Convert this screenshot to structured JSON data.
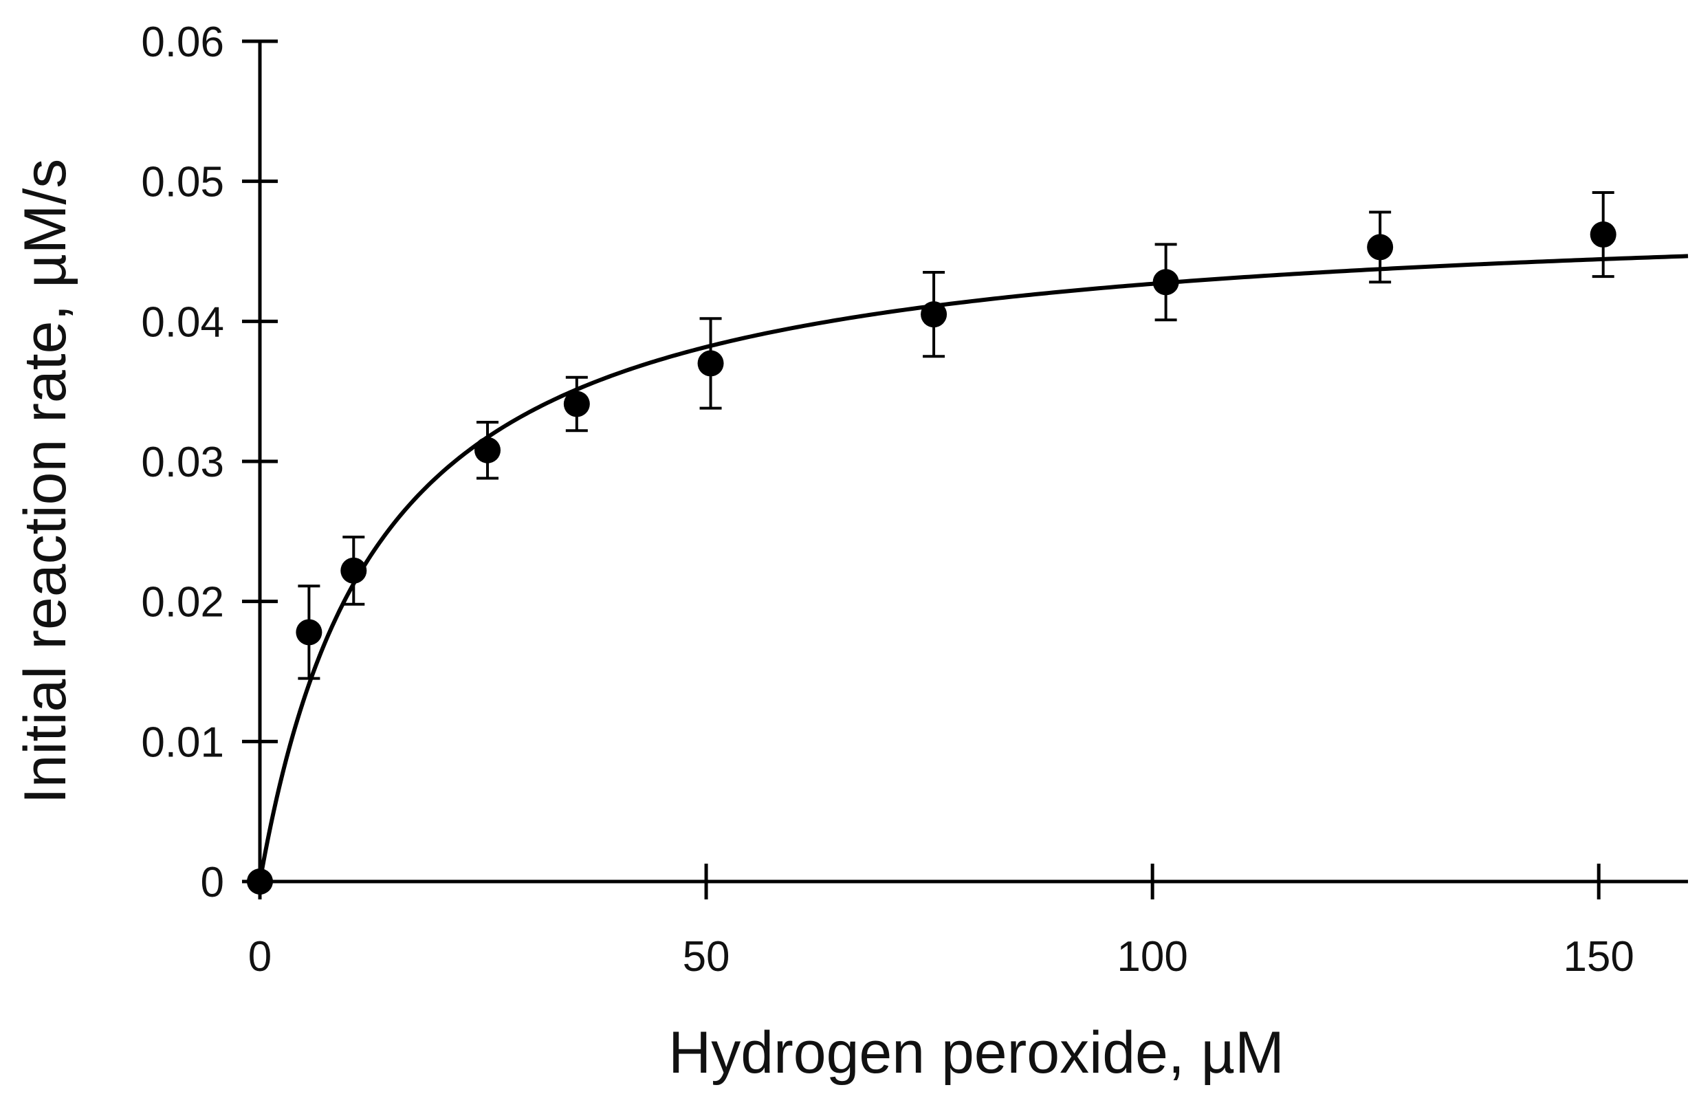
{
  "chart_data": {
    "type": "scatter",
    "title": "",
    "xlabel": "Hydrogen peroxide, µM",
    "ylabel": "Initial reaction rate, µM/s",
    "xlim": [
      0,
      160
    ],
    "ylim": [
      0,
      0.06
    ],
    "xticks": [
      0,
      50,
      100,
      150
    ],
    "xtick_labels": [
      "0",
      "50",
      "100",
      "150"
    ],
    "yticks": [
      0,
      0.01,
      0.02,
      0.03,
      0.04,
      0.05,
      0.06
    ],
    "ytick_labels": [
      "0",
      "0.01",
      "0.02",
      "0.03",
      "0.04",
      "0.05",
      "0.06"
    ],
    "grid": false,
    "legend": "none",
    "series": [
      {
        "kind": "points-with-error",
        "x": [
          0,
          5.5,
          10.5,
          25.5,
          35.5,
          50.5,
          75.5,
          101.5,
          125.5,
          150.5
        ],
        "y": [
          0,
          0.0178,
          0.0222,
          0.0308,
          0.0341,
          0.037,
          0.0405,
          0.0428,
          0.0453,
          0.0462
        ],
        "yerr": [
          0,
          0.0033,
          0.0024,
          0.002,
          0.0019,
          0.0032,
          0.003,
          0.0027,
          0.0025,
          0.003
        ]
      },
      {
        "kind": "fit-curve",
        "model": "Michaelis-Menten",
        "vmax": 0.0484,
        "km": 13.4,
        "x_range": [
          0,
          160
        ]
      }
    ]
  }
}
